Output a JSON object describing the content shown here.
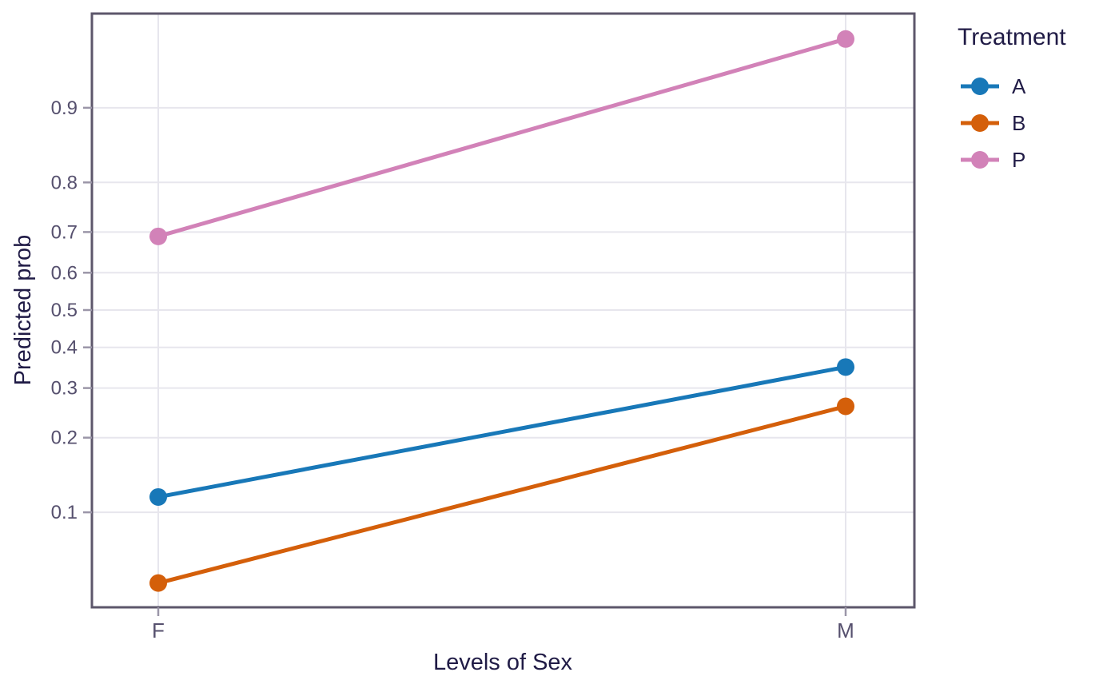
{
  "chart_data": {
    "type": "line",
    "title": "",
    "xlabel": "Levels of Sex",
    "ylabel": "Predicted prob",
    "categories": [
      "F",
      "M"
    ],
    "series": [
      {
        "name": "A",
        "color": "#1878b8",
        "values": [
          0.116,
          0.35
        ]
      },
      {
        "name": "B",
        "color": "#d45f0a",
        "values": [
          0.049,
          0.26
        ]
      },
      {
        "name": "P",
        "color": "#d282b8",
        "values": [
          0.69,
          0.95
        ]
      }
    ],
    "y_scale": "logit",
    "y_ticks": [
      0.9,
      0.8,
      0.7,
      0.6,
      0.5,
      0.4,
      0.3,
      0.2,
      0.1
    ],
    "grid": true,
    "legend": {
      "title": "Treatment",
      "position": "right"
    },
    "palette": {
      "gridline": "#e7e6ed",
      "panel_border": "#5d576b",
      "tick_mark": "#9b96a8",
      "tick_label_text": "#56506e",
      "axis_title_text": "#201b46"
    }
  }
}
